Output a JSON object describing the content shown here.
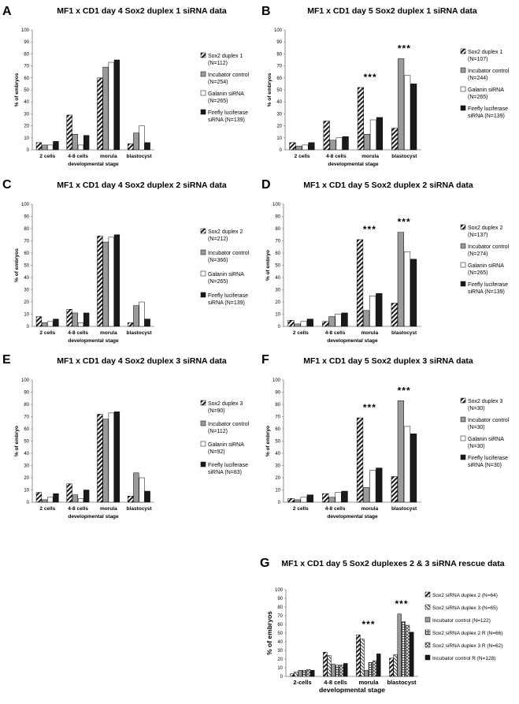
{
  "colors": {
    "dark": "#1a1a1a",
    "gray": "#9a9a9a",
    "white": "#ffffff",
    "stroke": "#000000",
    "axis": "#777777"
  },
  "chart_data": [
    {
      "label": "A",
      "type": "bar",
      "title": "MF1 x CD1 day 4 Sox2 duplex 1 siRNA data",
      "ylabel": "% of embryos",
      "xlabel": "developmental stage",
      "ylim": [
        0,
        100
      ],
      "yticks": [
        0,
        10,
        20,
        30,
        40,
        50,
        60,
        70,
        80,
        90,
        100
      ],
      "categories": [
        "2 cells",
        "4-8 cells",
        "morula",
        "blastocyst"
      ],
      "significance": [
        "",
        "",
        "",
        ""
      ],
      "series": [
        {
          "name": "Sox2 duplex 1 (N=112)",
          "legend_lines": [
            "Sox2 duplex 1",
            "(N=112)"
          ],
          "pattern": "hatch",
          "values": [
            6,
            29,
            60,
            5
          ]
        },
        {
          "name": "Incubator control (N=254)",
          "legend_lines": [
            "Incubator control",
            "(N=254)"
          ],
          "pattern": "gray",
          "values": [
            4,
            13,
            69,
            14
          ]
        },
        {
          "name": "Galanin siRNA (N=265)",
          "legend_lines": [
            "Galanin siRNA",
            "(N=265)"
          ],
          "pattern": "white",
          "values": [
            4,
            4,
            73,
            20
          ]
        },
        {
          "name": "Firefly luciferase siRNA (N=139)",
          "legend_lines": [
            "Firefly luciferase",
            "siRNA (N=139)"
          ],
          "pattern": "dark",
          "values": [
            7,
            12,
            75,
            6
          ]
        }
      ]
    },
    {
      "label": "B",
      "type": "bar",
      "title": "MF1 x CD1 day 5 Sox2 duplex 1 siRNA data",
      "ylabel": "% of embryos",
      "xlabel": "developmental stage",
      "ylim": [
        0,
        100
      ],
      "yticks": [
        0,
        10,
        20,
        30,
        40,
        50,
        60,
        70,
        80,
        90,
        100
      ],
      "categories": [
        "2 cells",
        "4-8 cells",
        "morula",
        "blastocyst"
      ],
      "significance": [
        "",
        "",
        "***",
        "***"
      ],
      "series": [
        {
          "name": "Sox2 duplex 1 (N=107)",
          "legend_lines": [
            "Sox2 duplex 1",
            "(N=107)"
          ],
          "pattern": "hatch",
          "values": [
            6,
            24,
            52,
            18
          ]
        },
        {
          "name": "Incubator control (N=244)",
          "legend_lines": [
            "Incubator control",
            "(N=244)"
          ],
          "pattern": "gray",
          "values": [
            3,
            8,
            13,
            76
          ]
        },
        {
          "name": "Galanin siRNA (N=265)",
          "legend_lines": [
            "Galanin siRNA",
            "(N=265)"
          ],
          "pattern": "white",
          "values": [
            4,
            10,
            25,
            62
          ]
        },
        {
          "name": "Firefly luciferase siRNA (N=139)",
          "legend_lines": [
            "Firefly luciferase",
            "siRNA (N=139)"
          ],
          "pattern": "dark",
          "values": [
            6,
            11,
            27,
            55
          ]
        }
      ]
    },
    {
      "label": "C",
      "type": "bar",
      "title": "MF1 x CD1 day 4 Sox2 duplex 2 siRNA data",
      "ylabel": "% of embryos",
      "xlabel": "developmental stage",
      "ylim": [
        0,
        100
      ],
      "yticks": [
        0,
        10,
        20,
        30,
        40,
        50,
        60,
        70,
        80,
        90,
        100
      ],
      "categories": [
        "2 cells",
        "4-8 cells",
        "morula",
        "blastocyst"
      ],
      "significance": [
        "",
        "",
        "",
        ""
      ],
      "series": [
        {
          "name": "Sox2 duplex 2 (N=212)",
          "legend_lines": [
            "Sox2 duplex 2",
            "(N=212)"
          ],
          "pattern": "hatch",
          "values": [
            8,
            14,
            74,
            3
          ]
        },
        {
          "name": "Incubator control (N=366)",
          "legend_lines": [
            "Incubator control",
            "(N=366)"
          ],
          "pattern": "gray",
          "values": [
            3,
            11,
            69,
            17
          ]
        },
        {
          "name": "Galanin siRNA (N=265)",
          "legend_lines": [
            "Galanin siRNA",
            "(N=265)"
          ],
          "pattern": "white",
          "values": [
            4,
            3,
            73,
            20
          ]
        },
        {
          "name": "Firefly luciferase siRNA (N=139)",
          "legend_lines": [
            "Firefly luciferase",
            "siRNA (N=139)"
          ],
          "pattern": "dark",
          "values": [
            6,
            11,
            75,
            6
          ]
        }
      ]
    },
    {
      "label": "D",
      "type": "bar",
      "title": "MF1 x CD1 day 5 Sox2 duplex 2 siRNA data",
      "ylabel": "% of embryo",
      "xlabel": "developmental stage",
      "ylim": [
        0,
        100
      ],
      "yticks": [
        0,
        10,
        20,
        30,
        40,
        50,
        60,
        70,
        80,
        90,
        100
      ],
      "categories": [
        "2 cells",
        "4-8 cells",
        "morula",
        "blastocyst"
      ],
      "significance": [
        "",
        "",
        "***",
        "***"
      ],
      "series": [
        {
          "name": "Sox2 duplex 2 (N=137)",
          "legend_lines": [
            "Sox2 duplex 2",
            "(N=137)"
          ],
          "pattern": "hatch",
          "values": [
            5,
            4,
            71,
            19
          ]
        },
        {
          "name": "Incubator control (N=274)",
          "legend_lines": [
            "Incubator control",
            "(N=274)"
          ],
          "pattern": "gray",
          "values": [
            2,
            8,
            13,
            77
          ]
        },
        {
          "name": "Galanin siRNA (N=265)",
          "legend_lines": [
            "Galanin siRNA",
            "(N=265)"
          ],
          "pattern": "white",
          "values": [
            4,
            10,
            25,
            61
          ]
        },
        {
          "name": "Firefly luciferase siRNA (N=139)",
          "legend_lines": [
            "Firefly luciferase",
            "siRNA (N=139)"
          ],
          "pattern": "dark",
          "values": [
            6,
            11,
            27,
            55
          ]
        }
      ]
    },
    {
      "label": "E",
      "type": "bar",
      "title": "MF1 x CD1 day 4 Sox2 duplex 3 siRNA data",
      "ylabel": "% of embryo",
      "xlabel": "developmental stage",
      "ylim": [
        0,
        100
      ],
      "yticks": [
        0,
        10,
        20,
        30,
        40,
        50,
        60,
        70,
        80,
        90,
        100
      ],
      "categories": [
        "2 cells",
        "4-8 cells",
        "morula",
        "blastocyst"
      ],
      "significance": [
        "",
        "",
        "",
        ""
      ],
      "series": [
        {
          "name": "Sox2 duplex 3 (N=90)",
          "legend_lines": [
            "Sox2 duplex 3",
            "(N=90)"
          ],
          "pattern": "hatch",
          "values": [
            8,
            15,
            72,
            5
          ]
        },
        {
          "name": "Incubator control (N=112)",
          "legend_lines": [
            "Incubator control",
            "(N=112)"
          ],
          "pattern": "gray",
          "values": [
            2,
            6,
            68,
            24
          ]
        },
        {
          "name": "Galanin siRNA (N=92)",
          "legend_lines": [
            "Galanin siRNA",
            "(N=92)"
          ],
          "pattern": "white",
          "values": [
            4,
            3,
            73,
            20
          ]
        },
        {
          "name": "Firefly luciferase siRNA (N=83)",
          "legend_lines": [
            "Firefly luciferase",
            "siRNA (N=83)"
          ],
          "pattern": "dark",
          "values": [
            7,
            10,
            74,
            9
          ]
        }
      ]
    },
    {
      "label": "F",
      "type": "bar",
      "title": "MF1 x CD1 day 5 Sox2 duplex 3 siRNA data",
      "ylabel": "% of embryo",
      "xlabel": "developmental stage",
      "ylim": [
        0,
        100
      ],
      "yticks": [
        0,
        10,
        20,
        30,
        40,
        50,
        60,
        70,
        80,
        90,
        100
      ],
      "categories": [
        "2 cells",
        "4-8 cells",
        "morula",
        "blastocyst"
      ],
      "significance": [
        "",
        "",
        "***",
        "***"
      ],
      "series": [
        {
          "name": "Sox2 duplex 3 (N=30)",
          "legend_lines": [
            "Sox2 duplex 3",
            "(N=30)"
          ],
          "pattern": "hatch",
          "values": [
            3,
            7,
            69,
            21
          ]
        },
        {
          "name": "Incubator control (N=30)",
          "legend_lines": [
            "Incubator control",
            "(N=30)"
          ],
          "pattern": "gray",
          "values": [
            2,
            4,
            12,
            83
          ]
        },
        {
          "name": "Galanin siRNA (N=30)",
          "legend_lines": [
            "Galanin siRNA",
            "(N=30)"
          ],
          "pattern": "white",
          "values": [
            4,
            8,
            26,
            62
          ]
        },
        {
          "name": "Firefly luciferase siRNA (N=30)",
          "legend_lines": [
            "Firefly luciferase",
            "siRNA (N=30)"
          ],
          "pattern": "dark",
          "values": [
            6,
            9,
            28,
            56
          ]
        }
      ]
    },
    {
      "label": "G",
      "type": "bar",
      "title": "MF1 x CD1 day 5 Sox2 duplexes 2 & 3 siRNA rescue data",
      "ylabel": "% of embryos",
      "xlabel": "developmental stage",
      "ylim": [
        0,
        100
      ],
      "yticks": [
        0,
        10,
        20,
        30,
        40,
        50,
        60,
        70,
        80,
        90,
        100
      ],
      "categories": [
        "2-cells",
        "4-8 cells",
        "morula",
        "blastocyst"
      ],
      "significance": [
        "",
        "",
        "***",
        "***"
      ],
      "series": [
        {
          "name": "Sox2 siRNA duplex 2 (N=64)",
          "legend_lines": [
            "Sox2 siRNA duplex 2 (N=64)"
          ],
          "pattern": "hatch",
          "values": [
            3,
            28,
            48,
            21
          ]
        },
        {
          "name": "Sox2 siRNA duplex 3 (N=65)",
          "legend_lines": [
            "Sox2 siRNA duplex 3 (N=65)"
          ],
          "pattern": "hatch2",
          "values": [
            5,
            24,
            43,
            25
          ]
        },
        {
          "name": "Incubator control (N=122)",
          "legend_lines": [
            "Incubator control (N=122)"
          ],
          "pattern": "gray",
          "values": [
            7,
            14,
            7,
            72
          ]
        },
        {
          "name": "Sox2 siRNA duplex 2 R (N=66)",
          "legend_lines": [
            "Sox2 siRNA duplex 2 R (N=66)"
          ],
          "pattern": "grid",
          "values": [
            7,
            13,
            16,
            63
          ]
        },
        {
          "name": "Sox2 siRNA duplex 3 R (N=62)",
          "legend_lines": [
            "Sox2 siRNA duplex 3 R (N=62)"
          ],
          "pattern": "check",
          "values": [
            8,
            13,
            18,
            59
          ]
        },
        {
          "name": "Incubator control R (N=128)",
          "legend_lines": [
            "Incubator control R (N=128)"
          ],
          "pattern": "dark",
          "values": [
            7,
            15,
            26,
            51
          ]
        }
      ]
    }
  ]
}
